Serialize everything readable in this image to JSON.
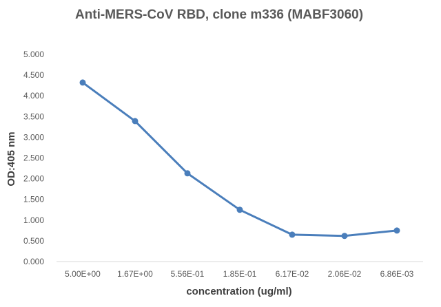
{
  "chart_data": {
    "type": "line",
    "title": "Anti-MERS-CoV RBD, clone m336 (MABF3060)",
    "xlabel": "concentration (ug/ml)",
    "ylabel": "OD:405 nm",
    "categories": [
      "5.00E+00",
      "1.67E+00",
      "5.56E-01",
      "1.85E-01",
      "6.17E-02",
      "2.06E-02",
      "6.86E-03"
    ],
    "series": [
      {
        "values": [
          4.32,
          3.39,
          2.13,
          1.25,
          0.65,
          0.62,
          0.75
        ],
        "color": "#4a7ebb"
      }
    ],
    "ylim": [
      0,
      5
    ],
    "yticks": [
      "0.000",
      "0.500",
      "1.000",
      "1.500",
      "2.000",
      "2.500",
      "3.000",
      "3.500",
      "4.000",
      "4.500",
      "5.000"
    ],
    "grid": false,
    "legend": "none",
    "axis_color": "#d9d9d9"
  }
}
